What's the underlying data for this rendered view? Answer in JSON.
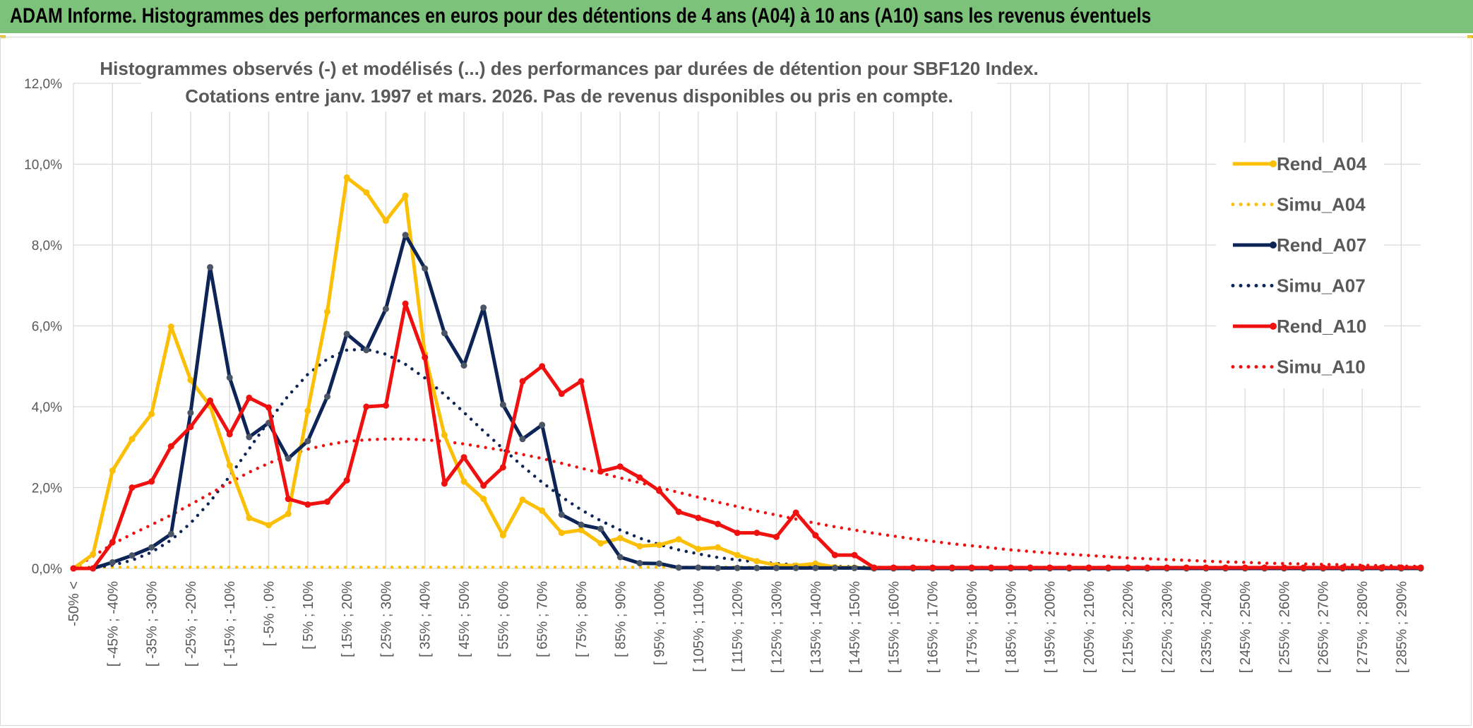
{
  "header": {
    "title": "ADAM Informe. Histogrammes des performances en euros pour des détentions de 4 ans (A04) à 10 ans (A10) sans les revenus éventuels"
  },
  "colors": {
    "header_bg": "#7cc27a",
    "a04": "#fbbf06",
    "a07": "#0d2456",
    "a07_marker": "#4a5566",
    "a10": "#ef1010",
    "grid": "#d9d9d9",
    "text": "#595959"
  },
  "chart_data": {
    "type": "line",
    "title": "Histogrammes observés (-) et modélisés (...) des performances par durées de détention pour SBF120 Index.",
    "subtitle": "Cotations entre janv. 1997 et mars. 2026. Pas de revenus disponibles ou pris en compte.",
    "ylim": [
      0,
      12
    ],
    "ytick_labels": [
      "0,0%",
      "2,0%",
      "4,0%",
      "6,0%",
      "8,0%",
      "10,0%",
      "12,0%"
    ],
    "xtick_labels": [
      "-50% <",
      "[ -45% ; -40%",
      "[ -35% ; -30%",
      "[ -25% ; -20%",
      "[ -15% ; -10%",
      "[ -5% ; 0%",
      "[ 5% ; 10%",
      "[ 15% ; 20%",
      "[ 25% ; 30%",
      "[ 35% ; 40%",
      "[ 45% ; 50%",
      "[ 55% ; 60%",
      "[ 65% ; 70%",
      "[ 75% ; 80%",
      "[ 85% ; 90%",
      "[ 95% ; 100%",
      "[ 105% ; 110%",
      "[ 115% ; 120%",
      "[ 125% ; 130%",
      "[ 135% ; 140%",
      "[ 145% ; 150%",
      "[ 155% ; 160%",
      "[ 165% ; 170%",
      "[ 175% ; 180%",
      "[ 185% ; 190%",
      "[ 195% ; 200%",
      "[ 205% ; 210%",
      "[ 215% ; 220%",
      "[ 225% ; 230%",
      "[ 235% ; 240%",
      "[ 245% ; 250%",
      "[ 255% ; 260%",
      "[ 265% ; 270%",
      "[ 275% ; 280%",
      "[ 285% ; 290%"
    ],
    "n_bins": 70,
    "xlabel": "",
    "ylabel": "",
    "legend_position": "right",
    "series": [
      {
        "name": "Rend_A04",
        "style": "solid",
        "color": "#fbbf06",
        "marker_color": "#fbbf06",
        "values": [
          0.0,
          0.35,
          2.42,
          3.2,
          3.82,
          5.98,
          4.66,
          4.02,
          2.55,
          1.25,
          1.07,
          1.35,
          3.9,
          6.35,
          9.67,
          9.3,
          8.6,
          9.22,
          5.3,
          3.3,
          2.15,
          1.72,
          0.82,
          1.7,
          1.43,
          0.88,
          0.95,
          0.62,
          0.75,
          0.55,
          0.58,
          0.72,
          0.48,
          0.52,
          0.33,
          0.18,
          0.08,
          0.07,
          0.12,
          0.03,
          0.02,
          0.0,
          0,
          0,
          0,
          0,
          0,
          0,
          0,
          0,
          0,
          0,
          0,
          0,
          0,
          0,
          0,
          0,
          0,
          0,
          0,
          0,
          0,
          0,
          0,
          0,
          0,
          0,
          0,
          0
        ]
      },
      {
        "name": "Simu_A04",
        "style": "dotted",
        "color": "#fbbf06",
        "values": [
          0.03,
          0.03,
          0.03,
          0.03,
          0.03,
          0.03,
          0.03,
          0.03,
          0.03,
          0.03,
          0.03,
          0.03,
          0.03,
          0.03,
          0.03,
          0.03,
          0.03,
          0.03,
          0.03,
          0.03,
          0.03,
          0.03,
          0.03,
          0.03,
          0.03,
          0.03,
          0.03,
          0.03,
          0.03,
          0.03,
          0.03,
          0.03,
          0.03,
          0.03,
          0.03,
          0.03,
          0.03,
          0.03,
          0.03,
          0.03,
          0.03,
          0.03,
          0.03,
          0.03,
          0.03,
          0.03,
          0.03,
          0.03,
          0.03,
          0.03,
          0.03,
          0.03,
          0.03,
          0.03,
          0.03,
          0.03,
          0.03,
          0.03,
          0.03,
          0.03,
          0.03,
          0.03,
          0.03,
          0.03,
          0.03,
          0.03,
          0.03,
          0.03,
          0.03,
          0.03
        ]
      },
      {
        "name": "Rend_A07",
        "style": "solid",
        "color": "#0d2456",
        "marker_color": "#4a5566",
        "values": [
          0.0,
          0.0,
          0.15,
          0.32,
          0.52,
          0.85,
          3.85,
          7.45,
          4.72,
          3.25,
          3.6,
          2.72,
          3.15,
          4.25,
          5.8,
          5.4,
          6.42,
          8.25,
          7.42,
          5.82,
          5.02,
          6.45,
          4.05,
          3.2,
          3.55,
          1.33,
          1.08,
          0.98,
          0.28,
          0.13,
          0.12,
          0.02,
          0.02,
          0.01,
          0.01,
          0.01,
          0.01,
          0.01,
          0.01,
          0.01,
          0.01,
          0,
          0,
          0,
          0,
          0,
          0,
          0,
          0,
          0,
          0,
          0,
          0,
          0,
          0,
          0,
          0,
          0,
          0,
          0,
          0,
          0,
          0,
          0,
          0,
          0,
          0,
          0,
          0,
          0
        ]
      },
      {
        "name": "Simu_A07",
        "style": "dotted",
        "color": "#0d2456",
        "values": [
          0.0,
          0.02,
          0.08,
          0.2,
          0.4,
          0.7,
          1.12,
          1.65,
          2.28,
          2.96,
          3.64,
          4.27,
          4.8,
          5.18,
          5.4,
          5.42,
          5.3,
          5.05,
          4.71,
          4.3,
          3.86,
          3.4,
          2.96,
          2.53,
          2.13,
          1.77,
          1.45,
          1.18,
          0.95,
          0.75,
          0.59,
          0.46,
          0.36,
          0.27,
          0.21,
          0.16,
          0.12,
          0.09,
          0.07,
          0.05,
          0.04,
          0.03,
          0.02,
          0.015,
          0.01,
          0.008,
          0.006,
          0.004,
          0.003,
          0.002,
          0.001,
          0.001,
          0,
          0,
          0,
          0,
          0,
          0,
          0,
          0,
          0,
          0,
          0,
          0,
          0,
          0,
          0,
          0,
          0,
          0
        ]
      },
      {
        "name": "Rend_A10",
        "style": "solid",
        "color": "#ef1010",
        "marker_color": "#ef1010",
        "values": [
          0.0,
          0.0,
          0.65,
          2.0,
          2.15,
          3.02,
          3.5,
          4.15,
          3.32,
          4.22,
          3.98,
          1.72,
          1.58,
          1.65,
          2.18,
          4.0,
          4.03,
          6.55,
          5.22,
          2.1,
          2.75,
          2.05,
          2.5,
          4.63,
          5.0,
          4.32,
          4.63,
          2.4,
          2.52,
          2.25,
          1.92,
          1.4,
          1.25,
          1.1,
          0.88,
          0.88,
          0.78,
          1.38,
          0.82,
          0.33,
          0.33,
          0.02,
          0.02,
          0.02,
          0.02,
          0.02,
          0.02,
          0.02,
          0.02,
          0.02,
          0.02,
          0.02,
          0.02,
          0.02,
          0.02,
          0.02,
          0.02,
          0.02,
          0.02,
          0.02,
          0.02,
          0.02,
          0.02,
          0.02,
          0.02,
          0.02,
          0.02,
          0.02,
          0.02,
          0.02
        ]
      },
      {
        "name": "Simu_A10",
        "style": "dotted",
        "color": "#ef1010",
        "values": [
          0.0,
          0.3,
          0.6,
          0.85,
          1.08,
          1.32,
          1.58,
          1.85,
          2.12,
          2.38,
          2.6,
          2.8,
          2.95,
          3.06,
          3.14,
          3.18,
          3.2,
          3.2,
          3.18,
          3.14,
          3.08,
          3.0,
          2.92,
          2.82,
          2.72,
          2.6,
          2.48,
          2.36,
          2.24,
          2.12,
          2.0,
          1.88,
          1.76,
          1.64,
          1.53,
          1.42,
          1.32,
          1.22,
          1.12,
          1.03,
          0.95,
          0.87,
          0.8,
          0.73,
          0.67,
          0.61,
          0.56,
          0.51,
          0.46,
          0.42,
          0.38,
          0.35,
          0.32,
          0.29,
          0.26,
          0.24,
          0.22,
          0.2,
          0.18,
          0.16,
          0.15,
          0.13,
          0.12,
          0.11,
          0.1,
          0.09,
          0.08,
          0.07,
          0.06,
          0.05
        ]
      }
    ]
  }
}
